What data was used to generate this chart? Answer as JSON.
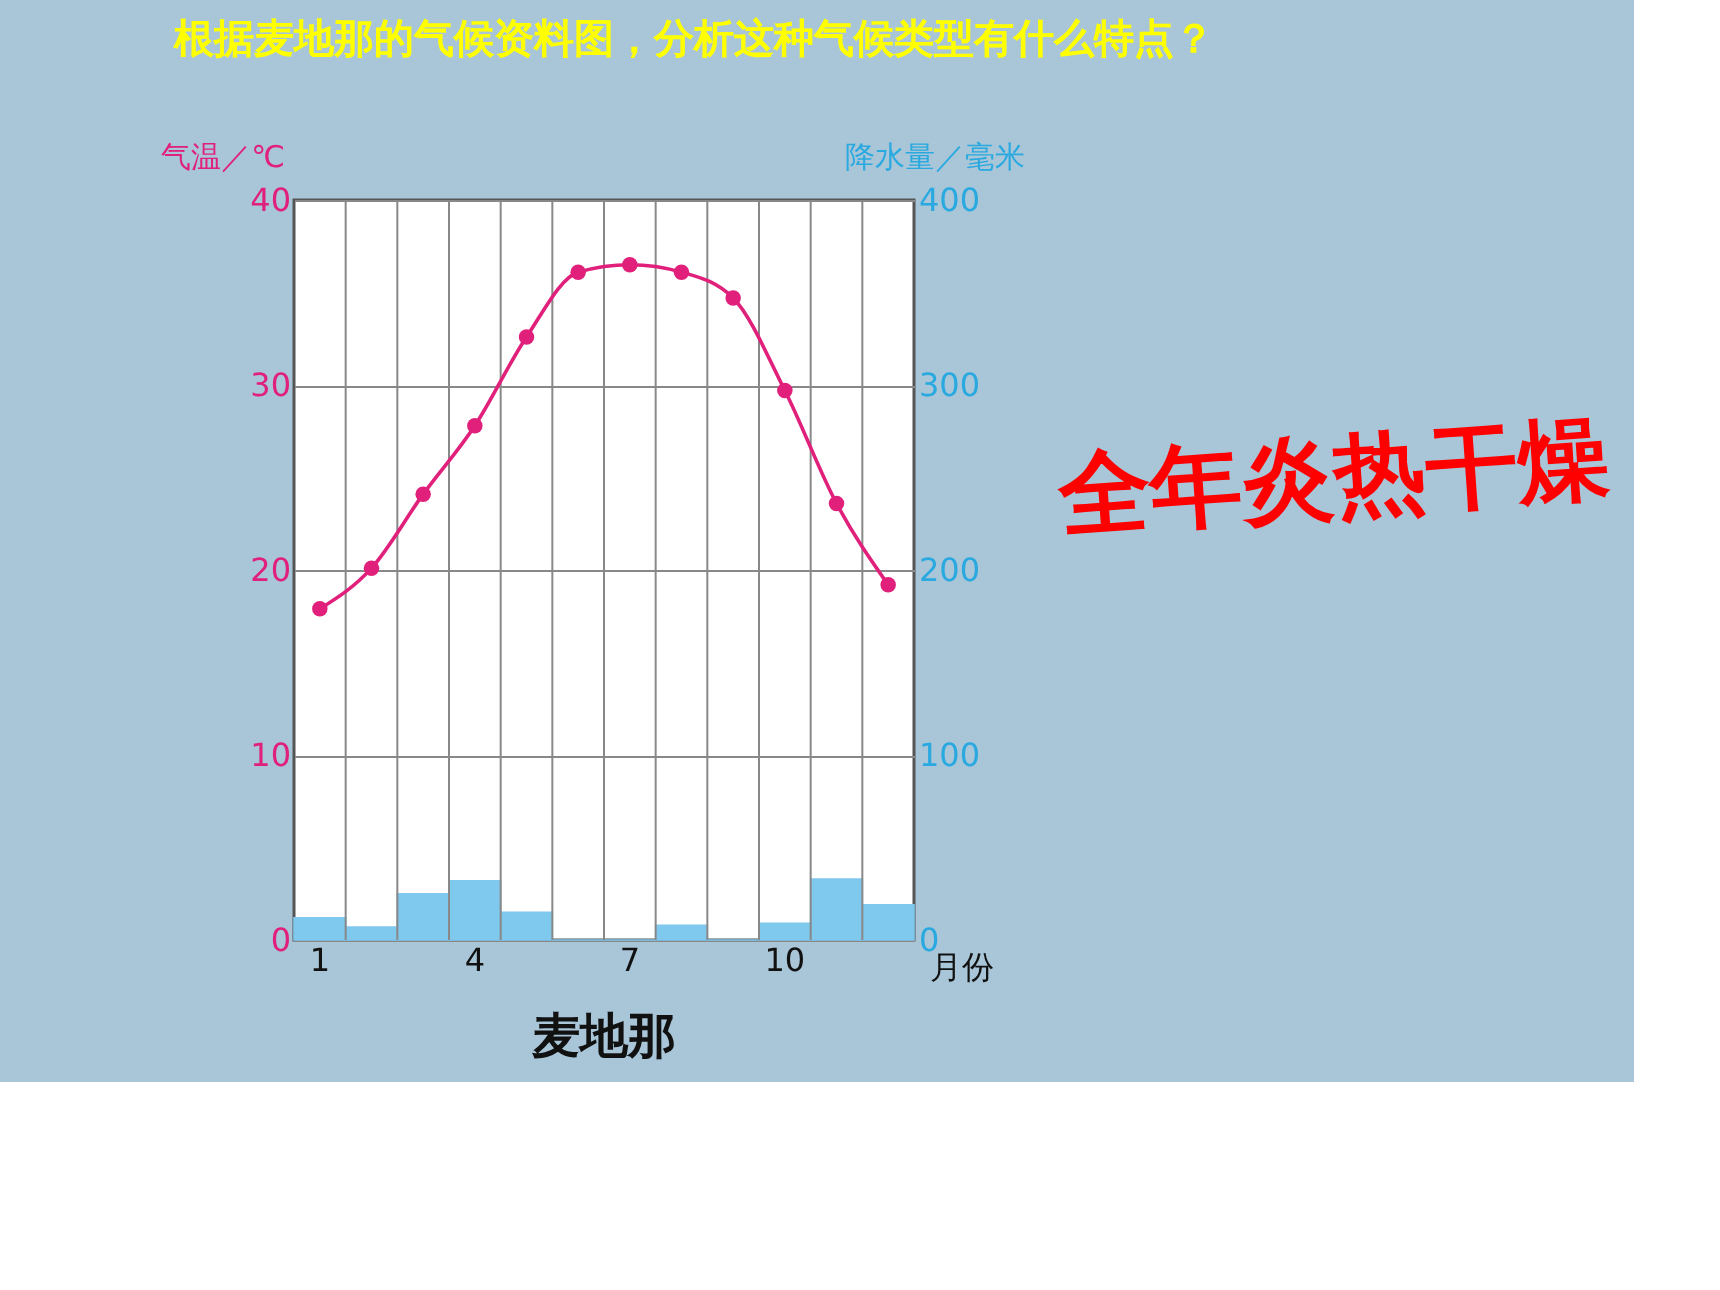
{
  "chart_data": {
    "type": "bar",
    "title": "麦地那",
    "xlabel": "月份",
    "ylabel": "气温／℃",
    "y2label": "降水量／毫米",
    "categories": [
      "1",
      null,
      null,
      "4",
      null,
      null,
      "7",
      null,
      null,
      "10",
      null,
      null
    ],
    "series": [
      {
        "name": null,
        "axis": "y2",
        "color": "#7fc8ee",
        "values": [
          12,
          7,
          25,
          32,
          15,
          0,
          0,
          8,
          0,
          9,
          33,
          19
        ]
      },
      {
        "name": null,
        "type": "line",
        "axis": "y",
        "color": "#e0207a",
        "marker": "circle",
        "line_style": "solid",
        "values": [
          17.9,
          20.1,
          24.1,
          27.8,
          32.6,
          36.1,
          36.5,
          36.1,
          34.7,
          29.7,
          23.6,
          19.2
        ]
      }
    ],
    "ylim": [
      0,
      40
    ],
    "yticks": [
      0,
      10,
      20,
      30,
      40
    ],
    "y2lim": [
      0,
      400
    ],
    "y2ticks": [
      0,
      100,
      200,
      300,
      400
    ],
    "grid": true,
    "annotations": [
      "根据麦地那的气候资料图，分析这种气候类型有什么特点？",
      "全年炎热干燥"
    ]
  }
}
